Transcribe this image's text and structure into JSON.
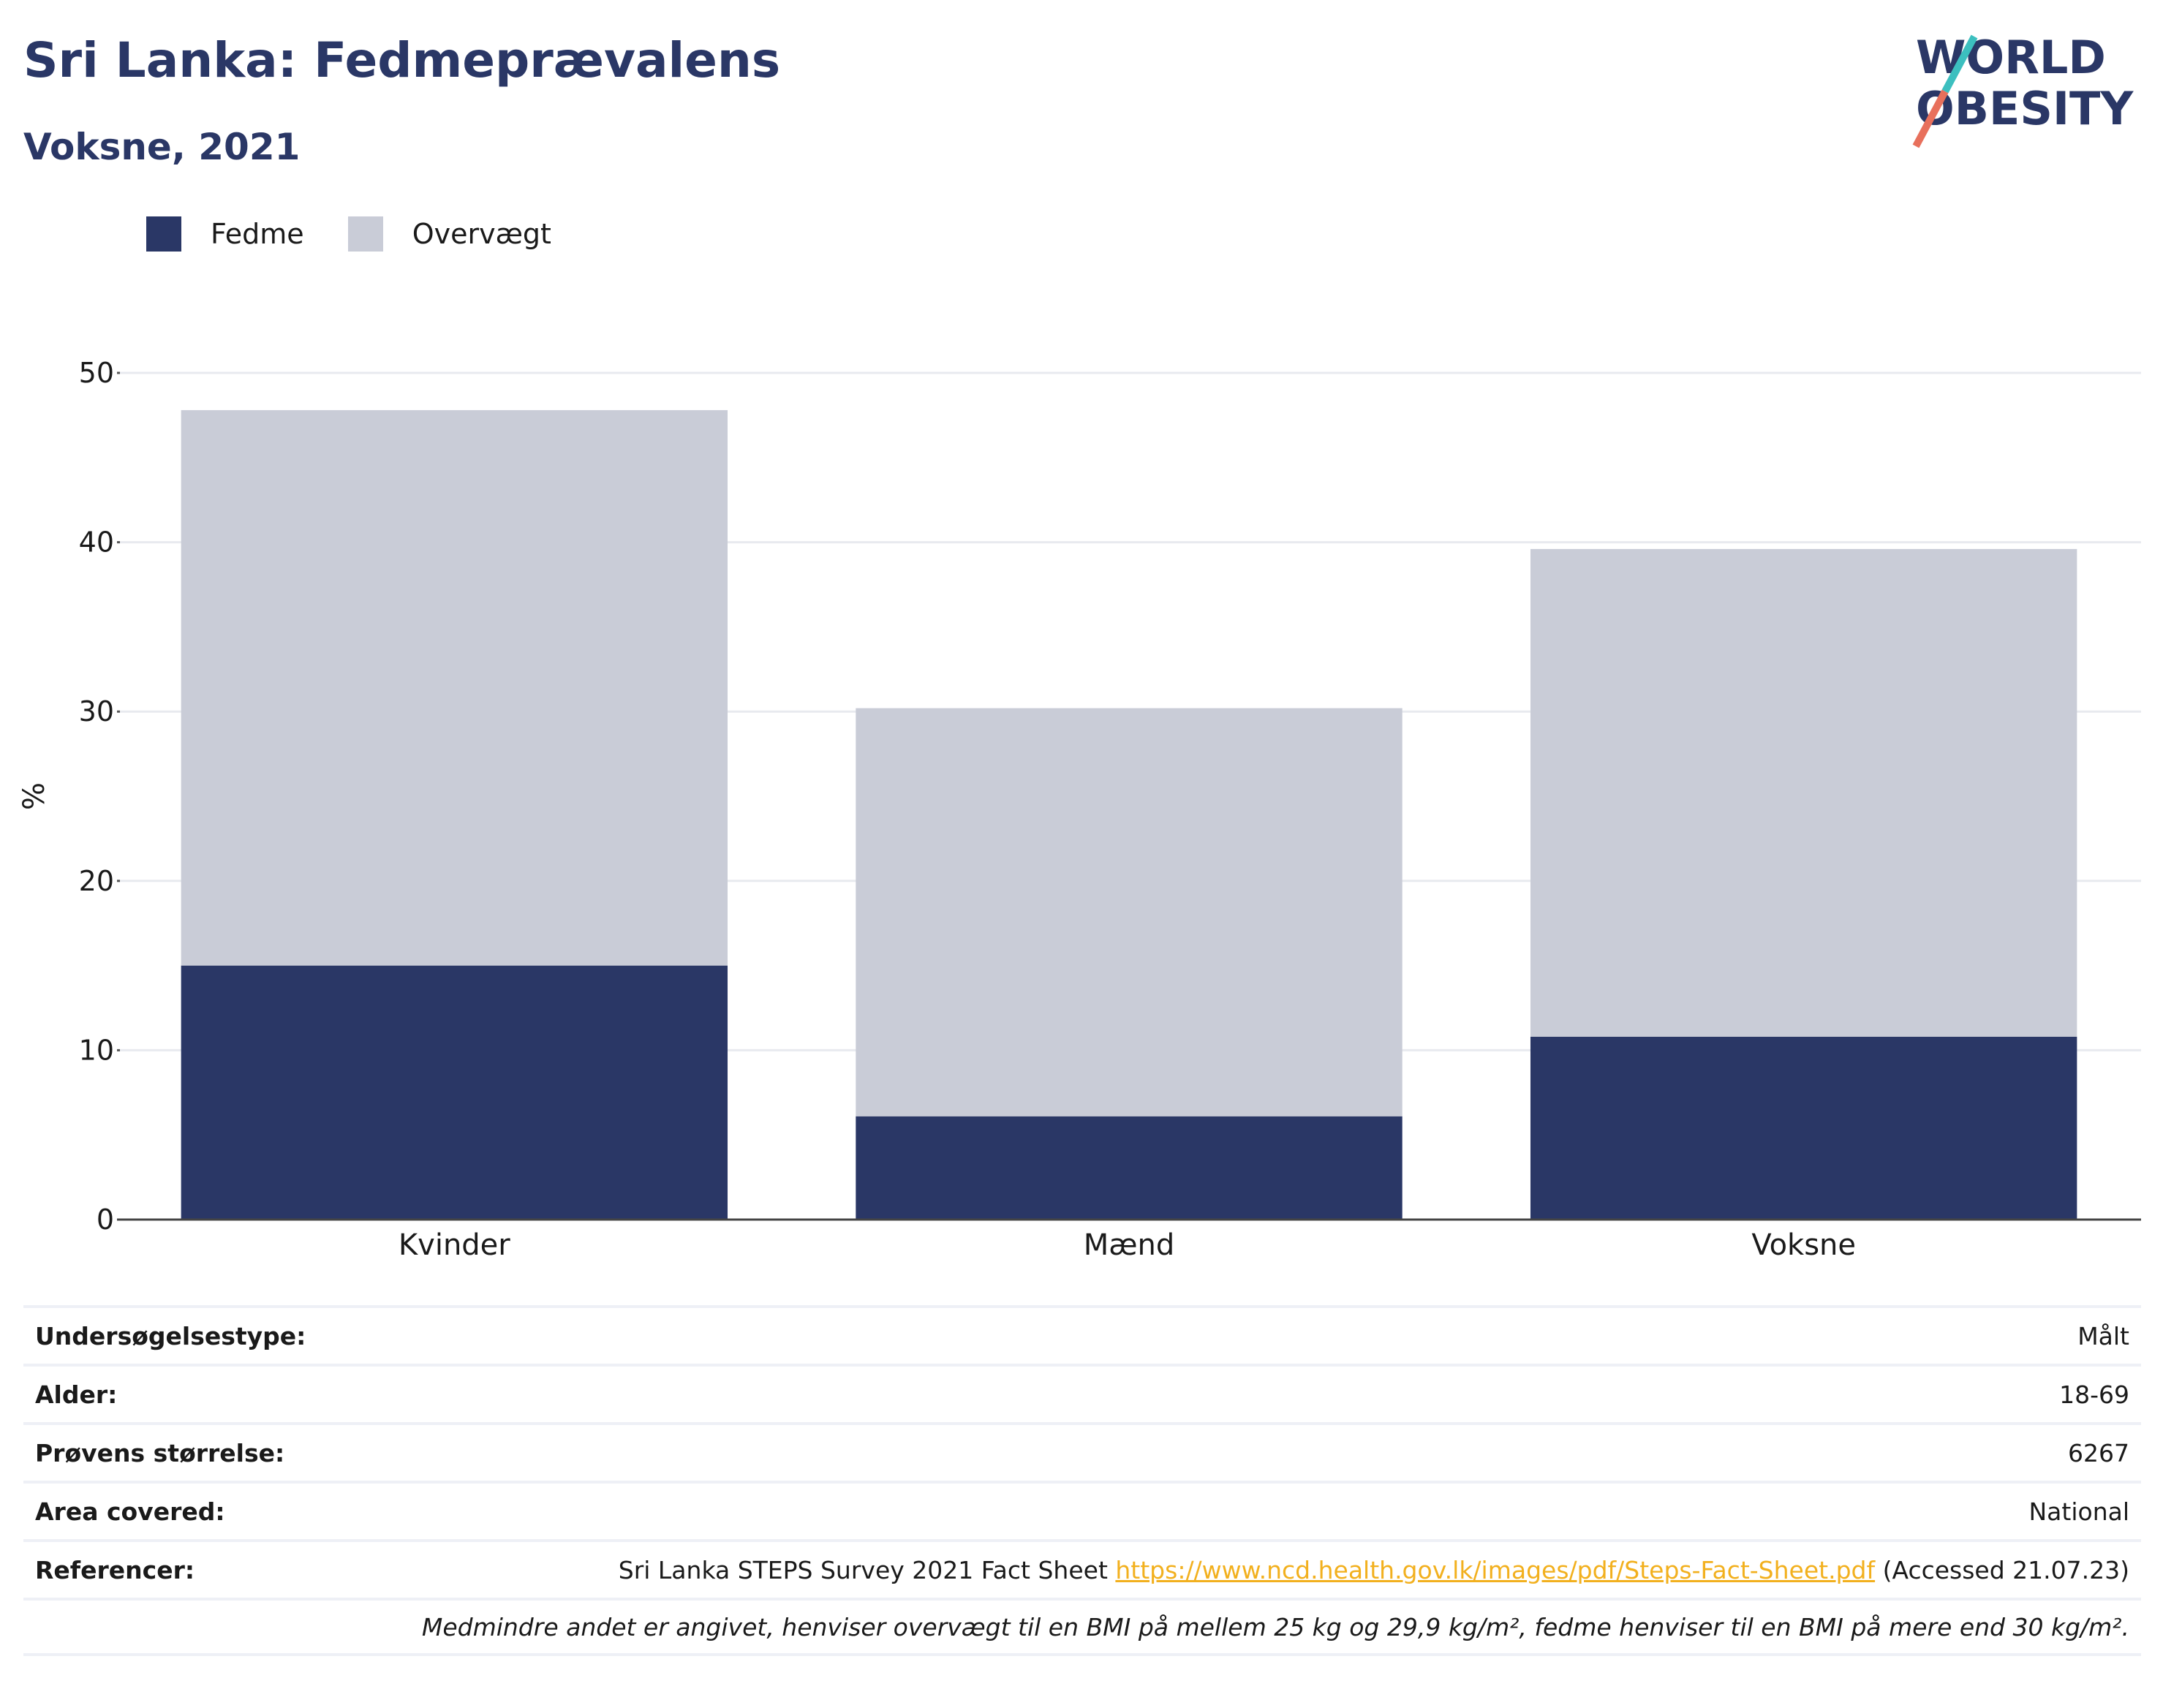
{
  "title": "Sri Lanka: Fedmeprævalens",
  "subtitle": "Voksne, 2021",
  "logo": {
    "line1": "WORLD",
    "line2": "OBESITY"
  },
  "colors": {
    "fedme": "#2a3766",
    "overvaegt": "#c9ccd7",
    "link": "#f2b01e",
    "logo_teal": "#3cbfbf",
    "logo_coral": "#e8705c"
  },
  "chart_data": {
    "type": "bar",
    "stacked": true,
    "categories": [
      "Kvinder",
      "Mænd",
      "Voksne"
    ],
    "series": [
      {
        "name": "Fedme",
        "values": [
          15.0,
          6.1,
          10.8
        ]
      },
      {
        "name": "Overvægt",
        "values": [
          32.8,
          24.1,
          28.8
        ]
      }
    ],
    "ylabel": "%",
    "ylim": [
      0,
      50
    ],
    "yticks": [
      0,
      10,
      20,
      30,
      40,
      50
    ],
    "grid": true,
    "legend_position": "top-left"
  },
  "meta": {
    "survey_type_label": "Undersøgelsestype:",
    "survey_type_value": "Målt",
    "age_label": "Alder:",
    "age_value": "18-69",
    "sample_label": "Prøvens størrelse:",
    "sample_value": "6267",
    "area_label": "Area covered:",
    "area_value": "National",
    "ref_label": "Referencer:",
    "ref_text": "Sri Lanka STEPS Survey 2021 Fact Sheet ",
    "ref_link": "https://www.ncd.health.gov.lk/images/pdf/Steps-Fact-Sheet.pdf",
    "ref_accessed": " (Accessed 21.07.23)",
    "note": "Medmindre andet er angivet, henviser overvægt til en BMI på mellem 25 kg og 29,9 kg/m², fedme henviser til en BMI på mere end 30 kg/m²."
  }
}
